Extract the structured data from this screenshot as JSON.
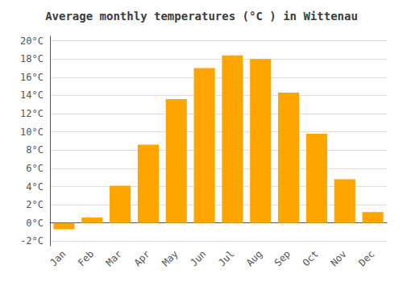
{
  "chart_data": {
    "type": "bar",
    "title": "Average monthly temperatures (°C ) in Wittenau",
    "categories": [
      "Jan",
      "Feb",
      "Mar",
      "Apr",
      "May",
      "Jun",
      "Jul",
      "Aug",
      "Sep",
      "Oct",
      "Nov",
      "Dec"
    ],
    "values": [
      -0.7,
      0.6,
      4.1,
      8.6,
      13.6,
      17.0,
      18.4,
      18.0,
      14.3,
      9.8,
      4.8,
      1.2
    ],
    "color": "#FFA500",
    "ylim": [
      -2.5,
      20.5
    ],
    "yticks": [
      {
        "value": -2,
        "label": "-2°C"
      },
      {
        "value": 0,
        "label": "0°C"
      },
      {
        "value": 2,
        "label": "2°C"
      },
      {
        "value": 4,
        "label": "4°C"
      },
      {
        "value": 6,
        "label": "6°C"
      },
      {
        "value": 8,
        "label": "8°C"
      },
      {
        "value": 10,
        "label": "10°C"
      },
      {
        "value": 12,
        "label": "12°C"
      },
      {
        "value": 14,
        "label": "14°C"
      },
      {
        "value": 16,
        "label": "16°C"
      },
      {
        "value": 18,
        "label": "18°C"
      },
      {
        "value": 20,
        "label": "20°C"
      }
    ],
    "grid": true
  }
}
